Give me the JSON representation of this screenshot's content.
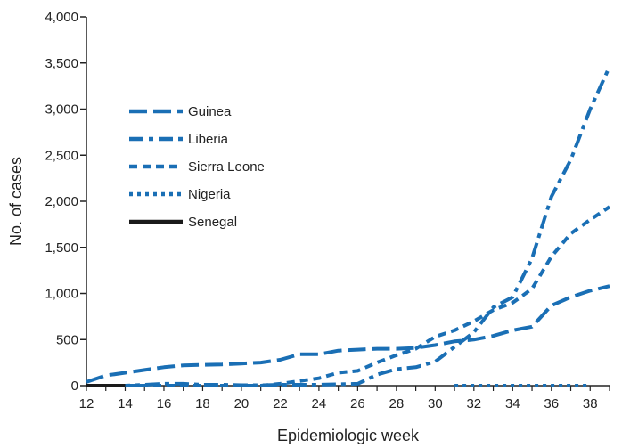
{
  "chart_data": {
    "type": "line",
    "title": "",
    "xlabel": "Epidemiologic week",
    "ylabel": "No. of cases",
    "xlim": [
      12,
      39
    ],
    "ylim": [
      0,
      4000
    ],
    "x_ticks": [
      "12",
      "14",
      "16",
      "18",
      "20",
      "22",
      "24",
      "26",
      "28",
      "30",
      "32",
      "34",
      "36",
      "38"
    ],
    "y_ticks": [
      "0",
      "500",
      "1,000",
      "1,500",
      "2,000",
      "2,500",
      "3,000",
      "3,500",
      "4,000"
    ],
    "grid": false,
    "legend_position": "upper-left",
    "series": [
      {
        "name": "Guinea",
        "color": "#1a6fb5",
        "dash": "long-dash",
        "x": [
          12,
          13,
          14,
          15,
          16,
          17,
          18,
          19,
          20,
          21,
          22,
          23,
          24,
          25,
          26,
          27,
          28,
          29,
          30,
          31,
          32,
          33,
          34,
          35,
          36,
          37,
          38,
          39
        ],
        "y": [
          40,
          110,
          140,
          170,
          200,
          220,
          225,
          230,
          240,
          250,
          280,
          340,
          340,
          380,
          390,
          400,
          400,
          410,
          440,
          480,
          500,
          540,
          600,
          640,
          870,
          960,
          1030,
          1080
        ]
      },
      {
        "name": "Liberia",
        "color": "#1a6fb5",
        "dash": "dash-dot",
        "x": [
          12,
          13,
          14,
          15,
          16,
          17,
          18,
          19,
          20,
          21,
          22,
          23,
          24,
          25,
          26,
          27,
          28,
          29,
          30,
          31,
          32,
          33,
          34,
          35,
          36,
          37,
          38,
          39
        ],
        "y": [
          0,
          0,
          0,
          10,
          20,
          20,
          10,
          10,
          5,
          5,
          10,
          10,
          10,
          15,
          20,
          120,
          180,
          200,
          260,
          420,
          580,
          850,
          960,
          1380,
          2050,
          2450,
          3000,
          3460
        ]
      },
      {
        "name": "Sierra Leone",
        "color": "#1a6fb5",
        "dash": "short-dash",
        "x": [
          12,
          13,
          14,
          15,
          16,
          17,
          18,
          19,
          20,
          21,
          22,
          23,
          24,
          25,
          26,
          27,
          28,
          29,
          30,
          31,
          32,
          33,
          34,
          35,
          36,
          37,
          38,
          39
        ],
        "y": [
          0,
          0,
          0,
          0,
          0,
          0,
          0,
          0,
          0,
          0,
          20,
          50,
          80,
          140,
          160,
          250,
          330,
          400,
          530,
          600,
          700,
          820,
          900,
          1050,
          1400,
          1650,
          1800,
          1940
        ]
      },
      {
        "name": "Nigeria",
        "color": "#1a6fb5",
        "dash": "dotted",
        "x": [
          31,
          32,
          33,
          34,
          35,
          36,
          37,
          38
        ],
        "y": [
          0,
          0,
          0,
          0,
          0,
          0,
          0,
          0
        ]
      },
      {
        "name": "Senegal",
        "color": "#1a1a1a",
        "dash": "solid",
        "x": [
          12,
          14
        ],
        "y": [
          0,
          0
        ]
      }
    ]
  }
}
